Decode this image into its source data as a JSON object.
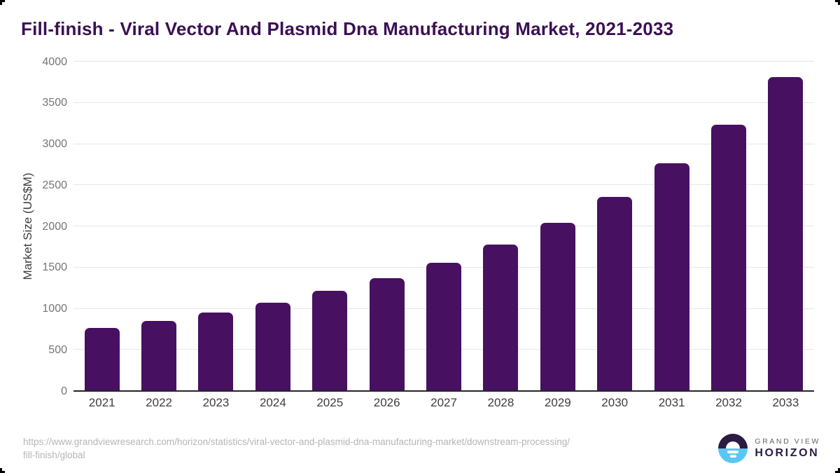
{
  "title": "Fill-finish - Viral Vector And Plasmid Dna Manufacturing Market, 2021-2033",
  "chart_data": {
    "type": "bar",
    "title": "Fill-finish - Viral Vector And Plasmid Dna Manufacturing Market, 2021-2033",
    "categories": [
      "2021",
      "2022",
      "2023",
      "2024",
      "2025",
      "2026",
      "2027",
      "2028",
      "2029",
      "2030",
      "2031",
      "2032",
      "2033"
    ],
    "values": [
      770,
      855,
      955,
      1075,
      1215,
      1370,
      1555,
      1775,
      2040,
      2360,
      2765,
      3230,
      3810
    ],
    "xlabel": "",
    "ylabel": "Market Size (US$M)",
    "ylim": [
      0,
      4000
    ],
    "y_ticks": [
      0,
      500,
      1000,
      1500,
      2000,
      2500,
      3000,
      3500,
      4000
    ],
    "grid": "horizontal-light-gray",
    "legend": "none",
    "bar_color": "#471060"
  },
  "footer": {
    "url_line1": "https://www.grandviewresearch.com/horizon/statistics/viral-vector-and-plasmid-dna-manufacturing-market/downstream-processing/",
    "url_line2": "fill-finish/global",
    "logo": {
      "line1": "GRAND VIEW",
      "line2": "HORIZON"
    }
  },
  "colors": {
    "bar": "#471060",
    "title": "#3b1053",
    "gridline": "#e7e7e7",
    "axis_line": "#262626",
    "y_tick_text": "#757575",
    "x_tick_text": "#3d3d3d",
    "url_text": "#b5b5b5",
    "logo_dark": "#2b1b43",
    "logo_blue": "#5bc6f2"
  }
}
